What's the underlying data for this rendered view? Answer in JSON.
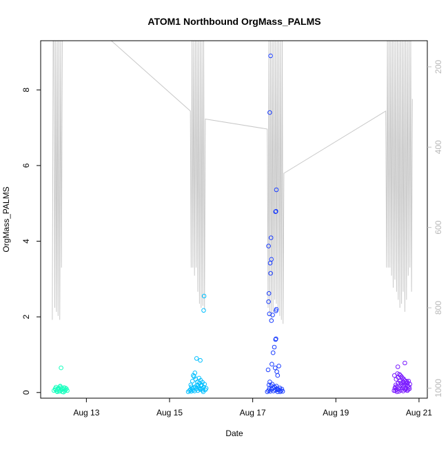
{
  "chart_data": {
    "type": "scatter",
    "title": "ATOM1 Northbound OrgMass_PALMS",
    "xlabel": "Date",
    "ylabel": "OrgMass_PALMS",
    "x_ticks": [
      "Aug 13",
      "Aug 15",
      "Aug 17",
      "Aug 19",
      "Aug 21"
    ],
    "x_tick_days": [
      13,
      15,
      17,
      19,
      21
    ],
    "xlim_days": [
      11.9,
      21.2
    ],
    "y_ticks": [
      "0",
      "2",
      "4",
      "6",
      "8"
    ],
    "y_tick_values": [
      0,
      2,
      4,
      6,
      8
    ],
    "ylim": [
      -0.15,
      9.3
    ],
    "y2_ticks": [
      "200",
      "400",
      "600",
      "800",
      "1000"
    ],
    "y2_tick_values": [
      200,
      400,
      600,
      800,
      1000
    ],
    "y2lim": [
      1025,
      135
    ],
    "y2_reversed": true,
    "grid": false,
    "legend": "none",
    "series_colors": [
      "#1affbf",
      "#00bfff",
      "#1a3dff",
      "#7a1aff"
    ],
    "pressure_line_color": "#c8c8c8",
    "series": [
      {
        "points": [
          [
            12.22,
            0.05
          ],
          [
            12.25,
            0.1
          ],
          [
            12.27,
            0.14
          ],
          [
            12.29,
            0.04
          ],
          [
            12.31,
            0.08
          ],
          [
            12.33,
            0.12
          ],
          [
            12.35,
            0.03
          ],
          [
            12.36,
            0.15
          ],
          [
            12.38,
            0.06
          ],
          [
            12.4,
            0.11
          ],
          [
            12.42,
            0.02
          ],
          [
            12.44,
            0.09
          ],
          [
            12.46,
            0.13
          ],
          [
            12.48,
            0.04
          ],
          [
            12.5,
            0.07
          ],
          [
            12.52,
            0.1
          ],
          [
            12.54,
            0.05
          ],
          [
            12.3,
            0.02
          ],
          [
            12.37,
            0.17
          ],
          [
            12.41,
            0.08
          ],
          [
            12.45,
            0.01
          ],
          [
            12.49,
            0.12
          ],
          [
            12.26,
            0.07
          ],
          [
            12.34,
            0.1
          ],
          [
            12.39,
            0.65
          ]
        ]
      },
      {
        "points": [
          [
            15.45,
            0.02
          ],
          [
            15.48,
            0.05
          ],
          [
            15.5,
            0.08
          ],
          [
            15.52,
            0.03
          ],
          [
            15.54,
            0.1
          ],
          [
            15.56,
            0.06
          ],
          [
            15.58,
            0.12
          ],
          [
            15.6,
            0.04
          ],
          [
            15.62,
            0.15
          ],
          [
            15.64,
            0.09
          ],
          [
            15.66,
            0.2
          ],
          [
            15.68,
            0.05
          ],
          [
            15.7,
            0.13
          ],
          [
            15.72,
            0.25
          ],
          [
            15.74,
            0.08
          ],
          [
            15.76,
            0.18
          ],
          [
            15.78,
            0.1
          ],
          [
            15.8,
            0.06
          ],
          [
            15.82,
            0.14
          ],
          [
            15.84,
            0.22
          ],
          [
            15.86,
            0.07
          ],
          [
            15.88,
            0.11
          ],
          [
            15.51,
            0.2
          ],
          [
            15.55,
            0.3
          ],
          [
            15.59,
            0.42
          ],
          [
            15.63,
            0.35
          ],
          [
            15.67,
            0.28
          ],
          [
            15.71,
            0.38
          ],
          [
            15.75,
            0.32
          ],
          [
            15.79,
            0.27
          ],
          [
            15.53,
            0.15
          ],
          [
            15.57,
            0.45
          ],
          [
            15.61,
            0.52
          ],
          [
            15.69,
            0.18
          ],
          [
            15.73,
            0.1
          ],
          [
            15.77,
            0.2
          ],
          [
            15.81,
            0.02
          ],
          [
            15.65,
            0.9
          ],
          [
            15.74,
            0.85
          ],
          [
            15.83,
            2.55
          ],
          [
            15.82,
            2.17
          ]
        ]
      },
      {
        "points": [
          [
            17.35,
            0.02
          ],
          [
            17.38,
            0.05
          ],
          [
            17.4,
            0.1
          ],
          [
            17.42,
            0.03
          ],
          [
            17.45,
            0.08
          ],
          [
            17.48,
            0.12
          ],
          [
            17.5,
            0.04
          ],
          [
            17.52,
            0.15
          ],
          [
            17.55,
            0.06
          ],
          [
            17.58,
            0.1
          ],
          [
            17.6,
            0.02
          ],
          [
            17.62,
            0.08
          ],
          [
            17.65,
            0.12
          ],
          [
            17.68,
            0.05
          ],
          [
            17.7,
            0.09
          ],
          [
            17.72,
            0.03
          ],
          [
            17.39,
            0.2
          ],
          [
            17.41,
            0.28
          ],
          [
            17.44,
            0.18
          ],
          [
            17.47,
            0.22
          ],
          [
            17.53,
            0.14
          ],
          [
            17.57,
            0.17
          ],
          [
            17.61,
            0.07
          ],
          [
            17.66,
            0.02
          ],
          [
            17.37,
            0.6
          ],
          [
            17.46,
            0.75
          ],
          [
            17.54,
            0.65
          ],
          [
            17.58,
            0.55
          ],
          [
            17.6,
            0.45
          ],
          [
            17.63,
            0.7
          ],
          [
            17.49,
            1.05
          ],
          [
            17.52,
            1.2
          ],
          [
            17.55,
            1.4
          ],
          [
            17.56,
            1.42
          ],
          [
            17.45,
            1.9
          ],
          [
            17.4,
            2.08
          ],
          [
            17.48,
            2.05
          ],
          [
            17.57,
            2.2
          ],
          [
            17.56,
            2.16
          ],
          [
            17.38,
            2.4
          ],
          [
            17.39,
            2.62
          ],
          [
            17.43,
            3.15
          ],
          [
            17.42,
            3.42
          ],
          [
            17.45,
            3.52
          ],
          [
            17.38,
            3.87
          ],
          [
            17.44,
            4.09
          ],
          [
            17.56,
            4.79
          ],
          [
            17.55,
            4.78
          ],
          [
            17.57,
            5.36
          ],
          [
            17.41,
            7.4
          ],
          [
            17.43,
            8.9
          ]
        ]
      },
      {
        "points": [
          [
            20.4,
            0.05
          ],
          [
            20.42,
            0.12
          ],
          [
            20.44,
            0.2
          ],
          [
            20.46,
            0.08
          ],
          [
            20.48,
            0.15
          ],
          [
            20.5,
            0.25
          ],
          [
            20.52,
            0.1
          ],
          [
            20.54,
            0.3
          ],
          [
            20.56,
            0.18
          ],
          [
            20.58,
            0.22
          ],
          [
            20.6,
            0.12
          ],
          [
            20.62,
            0.28
          ],
          [
            20.64,
            0.15
          ],
          [
            20.66,
            0.2
          ],
          [
            20.68,
            0.1
          ],
          [
            20.7,
            0.25
          ],
          [
            20.72,
            0.18
          ],
          [
            20.74,
            0.08
          ],
          [
            20.76,
            0.15
          ],
          [
            20.78,
            0.22
          ],
          [
            20.45,
            0.35
          ],
          [
            20.5,
            0.4
          ],
          [
            20.55,
            0.45
          ],
          [
            20.6,
            0.38
          ],
          [
            20.65,
            0.32
          ],
          [
            20.7,
            0.3
          ],
          [
            20.48,
            0.5
          ],
          [
            20.53,
            0.48
          ],
          [
            20.58,
            0.42
          ],
          [
            20.63,
            0.36
          ],
          [
            20.68,
            0.28
          ],
          [
            20.73,
            0.26
          ],
          [
            20.43,
            0.05
          ],
          [
            20.47,
            0.02
          ],
          [
            20.52,
            0.03
          ],
          [
            20.57,
            0.06
          ],
          [
            20.62,
            0.04
          ],
          [
            20.67,
            0.07
          ],
          [
            20.72,
            0.05
          ],
          [
            20.77,
            0.1
          ],
          [
            20.41,
            0.45
          ],
          [
            20.49,
            0.68
          ],
          [
            20.66,
            0.78
          ],
          [
            20.44,
            0.15
          ],
          [
            20.56,
            0.25
          ],
          [
            20.61,
            0.18
          ],
          [
            20.69,
            0.12
          ],
          [
            20.75,
            0.3
          ]
        ]
      }
    ],
    "pressure_profile": [
      [
        12.18,
        830
      ],
      [
        12.2,
        135
      ],
      [
        12.22,
        135
      ],
      [
        12.24,
        800
      ],
      [
        12.26,
        135
      ],
      [
        12.28,
        810
      ],
      [
        12.3,
        135
      ],
      [
        12.32,
        820
      ],
      [
        12.34,
        135
      ],
      [
        12.36,
        830
      ],
      [
        12.38,
        135
      ],
      [
        12.4,
        700
      ],
      [
        12.42,
        135
      ],
      [
        12.44,
        135
      ],
      [
        13.6,
        135
      ],
      [
        15.5,
        310
      ],
      [
        15.52,
        700
      ],
      [
        15.54,
        135
      ],
      [
        15.56,
        700
      ],
      [
        15.58,
        135
      ],
      [
        15.6,
        720
      ],
      [
        15.62,
        135
      ],
      [
        15.64,
        700
      ],
      [
        15.66,
        135
      ],
      [
        15.68,
        760
      ],
      [
        15.7,
        135
      ],
      [
        15.72,
        790
      ],
      [
        15.74,
        135
      ],
      [
        15.76,
        800
      ],
      [
        15.78,
        135
      ],
      [
        15.8,
        795
      ],
      [
        15.82,
        135
      ],
      [
        15.84,
        805
      ],
      [
        15.86,
        330
      ],
      [
        17.35,
        355
      ],
      [
        17.37,
        800
      ],
      [
        17.39,
        135
      ],
      [
        17.41,
        820
      ],
      [
        17.43,
        135
      ],
      [
        17.45,
        830
      ],
      [
        17.47,
        135
      ],
      [
        17.49,
        810
      ],
      [
        17.51,
        135
      ],
      [
        17.53,
        780
      ],
      [
        17.55,
        135
      ],
      [
        17.57,
        790
      ],
      [
        17.59,
        135
      ],
      [
        17.61,
        800
      ],
      [
        17.63,
        135
      ],
      [
        17.65,
        820
      ],
      [
        17.67,
        135
      ],
      [
        17.69,
        830
      ],
      [
        17.71,
        135
      ],
      [
        17.73,
        840
      ],
      [
        17.75,
        465
      ],
      [
        20.2,
        310
      ],
      [
        20.22,
        700
      ],
      [
        20.24,
        135
      ],
      [
        20.26,
        700
      ],
      [
        20.28,
        135
      ],
      [
        20.3,
        700
      ],
      [
        20.32,
        135
      ],
      [
        20.34,
        720
      ],
      [
        20.36,
        135
      ],
      [
        20.38,
        750
      ],
      [
        20.4,
        135
      ],
      [
        20.42,
        730
      ],
      [
        20.44,
        135
      ],
      [
        20.46,
        760
      ],
      [
        20.48,
        135
      ],
      [
        20.5,
        780
      ],
      [
        20.52,
        135
      ],
      [
        20.54,
        800
      ],
      [
        20.56,
        135
      ],
      [
        20.58,
        790
      ],
      [
        20.6,
        135
      ],
      [
        20.62,
        760
      ],
      [
        20.64,
        135
      ],
      [
        20.66,
        810
      ],
      [
        20.68,
        135
      ],
      [
        20.7,
        780
      ],
      [
        20.72,
        135
      ],
      [
        20.74,
        720
      ],
      [
        20.76,
        135
      ],
      [
        20.78,
        700
      ],
      [
        20.8,
        135
      ],
      [
        20.82,
        760
      ],
      [
        20.84,
        280
      ]
    ]
  }
}
